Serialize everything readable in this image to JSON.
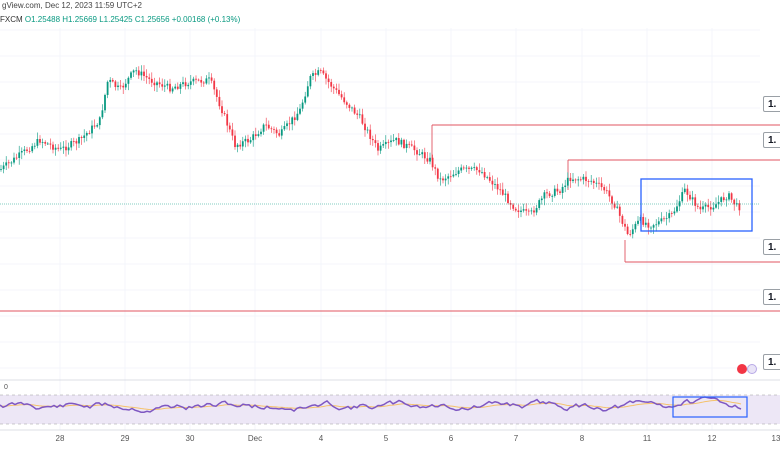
{
  "header": {
    "title": "gView.com, Dec 12, 2023 11:59 UTC+2",
    "source": "FXCM",
    "ohlc": {
      "o": "O1.25488",
      "h": "H1.25669",
      "l": "L1.25425",
      "c": "C1.25656",
      "chg": "+0.00168 (+0.13%)"
    }
  },
  "price_axis_labels": [
    "1.",
    "1.",
    "1.",
    "1.",
    "1."
  ],
  "rsi_label": "0",
  "date_labels": [
    "28",
    "29",
    "30",
    "Dec",
    "4",
    "5",
    "6",
    "7",
    "8",
    "11",
    "12",
    "13"
  ],
  "colors": {
    "bull": "#089981",
    "bear": "#f23645",
    "level_line": "#e05561",
    "box": "#2962ff",
    "rsi_line": "#7e57c2",
    "rsi_ma": "#f5c26b",
    "rsi_band": "#ede7f6"
  },
  "chart_data": {
    "type": "candlestick",
    "timeframe": "intraday",
    "x": [
      "28",
      "29",
      "30",
      "Dec",
      "4",
      "5",
      "6",
      "7",
      "8",
      "11",
      "12",
      "13"
    ],
    "approx_close_path": [
      1.2615,
      1.269,
      1.2655,
      1.263,
      1.2685,
      1.263,
      1.26,
      1.259,
      1.2595,
      1.258,
      1.2595,
      1.259
    ],
    "range_box": {
      "from": "11",
      "to": "12",
      "top": 1.2606,
      "bottom": 1.2584
    },
    "rsi": {
      "levels": [
        70,
        30
      ],
      "lower_pane_box": {
        "from": "11",
        "to": "12"
      }
    }
  }
}
